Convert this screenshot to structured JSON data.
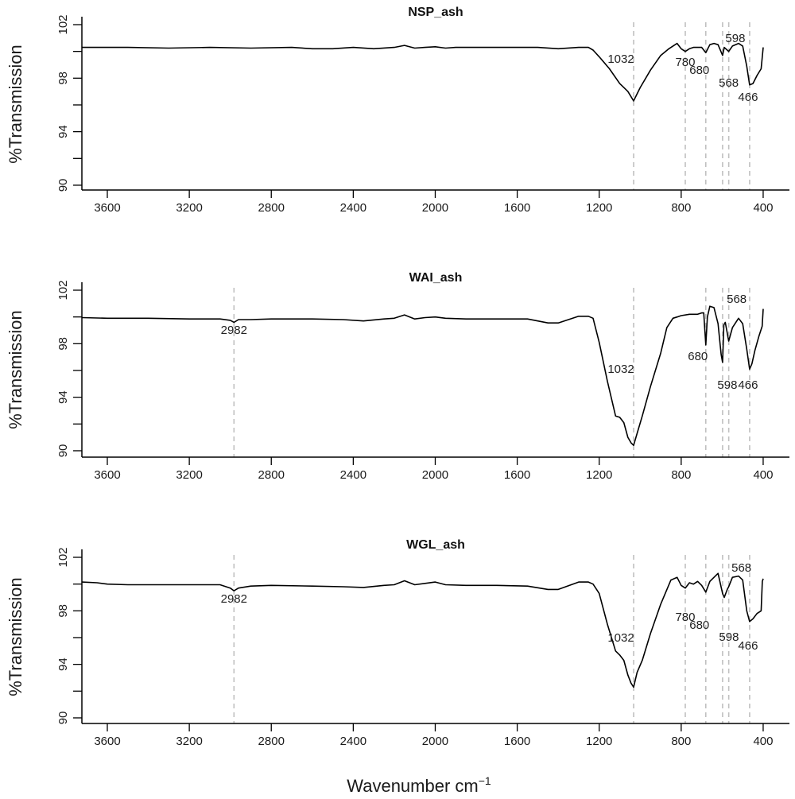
{
  "chart_data": [
    {
      "type": "line",
      "title": "NSP_ash",
      "xlabel": "Wavenumber cm",
      "xlabel_superscript": "−1",
      "ylabel": "%Transmission",
      "xlim": [
        3724,
        272
      ],
      "ylim": [
        90,
        102
      ],
      "xticks": [
        3600,
        3200,
        2800,
        2400,
        2000,
        1600,
        1200,
        800,
        400
      ],
      "yticks": [
        90,
        92,
        94,
        96,
        98,
        100,
        102
      ],
      "ytick_labels": [
        "90",
        "94",
        "98",
        "102"
      ],
      "grid": false,
      "peaks": [
        {
          "wn": 1032,
          "label": "1032"
        },
        {
          "wn": 780,
          "label": "780"
        },
        {
          "wn": 680,
          "label": "680"
        },
        {
          "wn": 598,
          "label": "598"
        },
        {
          "wn": 568,
          "label": "568"
        },
        {
          "wn": 466,
          "label": "466"
        }
      ],
      "series": [
        {
          "name": "NSP_ash",
          "color": "#000000",
          "x": [
            3724,
            3500,
            3300,
            3100,
            2900,
            2700,
            2600,
            2500,
            2400,
            2300,
            2200,
            2150,
            2100,
            2050,
            2000,
            1950,
            1900,
            1700,
            1500,
            1400,
            1300,
            1253,
            1230,
            1200,
            1150,
            1100,
            1080,
            1060,
            1032,
            1000,
            950,
            900,
            860,
            820,
            800,
            780,
            760,
            740,
            720,
            700,
            680,
            660,
            640,
            620,
            598,
            590,
            568,
            550,
            520,
            500,
            480,
            466,
            450,
            430,
            410,
            400
          ],
          "y": [
            100.3,
            100.3,
            100.25,
            100.3,
            100.25,
            100.3,
            100.2,
            100.2,
            100.3,
            100.2,
            100.3,
            100.45,
            100.25,
            100.3,
            100.35,
            100.25,
            100.3,
            100.3,
            100.3,
            100.2,
            100.3,
            100.3,
            100.1,
            99.6,
            98.7,
            97.6,
            97.3,
            97.0,
            96.3,
            97.3,
            98.6,
            99.7,
            100.2,
            100.6,
            100.2,
            100.0,
            100.2,
            100.3,
            100.3,
            100.3,
            99.9,
            100.5,
            100.6,
            100.5,
            99.7,
            100.3,
            100.0,
            100.4,
            100.6,
            100.4,
            98.9,
            97.5,
            97.6,
            98.2,
            98.7,
            100.3
          ]
        }
      ]
    },
    {
      "type": "line",
      "title": "WAI_ash",
      "xlabel": "Wavenumber cm",
      "ylabel": "%Transmission",
      "xlim": [
        3724,
        272
      ],
      "ylim": [
        90,
        102
      ],
      "xticks": [
        3600,
        3200,
        2800,
        2400,
        2000,
        1600,
        1200,
        800,
        400
      ],
      "yticks": [
        90,
        92,
        94,
        96,
        98,
        100,
        102
      ],
      "ytick_labels": [
        "90",
        "94",
        "98",
        "102"
      ],
      "grid": false,
      "peaks": [
        {
          "wn": 2982,
          "label": "2982"
        },
        {
          "wn": 1032,
          "label": "1032"
        },
        {
          "wn": 680,
          "label": "680"
        },
        {
          "wn": 598,
          "label": "598"
        },
        {
          "wn": 568,
          "label": "568"
        },
        {
          "wn": 466,
          "label": "466"
        }
      ],
      "series": [
        {
          "name": "WAI_ash",
          "color": "#000000",
          "x": [
            3724,
            3600,
            3400,
            3200,
            3050,
            3000,
            2982,
            2960,
            2900,
            2800,
            2600,
            2450,
            2350,
            2250,
            2200,
            2150,
            2100,
            2050,
            2000,
            1950,
            1850,
            1700,
            1550,
            1450,
            1400,
            1300,
            1253,
            1230,
            1200,
            1160,
            1120,
            1100,
            1080,
            1060,
            1045,
            1032,
            1015,
            990,
            950,
            900,
            870,
            840,
            820,
            800,
            760,
            720,
            700,
            690,
            680,
            672,
            660,
            640,
            620,
            605,
            598,
            592,
            585,
            568,
            550,
            520,
            500,
            480,
            466,
            455,
            440,
            420,
            405,
            400
          ],
          "y": [
            99.95,
            99.9,
            99.9,
            99.85,
            99.85,
            99.75,
            99.6,
            99.8,
            99.8,
            99.85,
            99.85,
            99.8,
            99.7,
            99.85,
            99.9,
            100.15,
            99.85,
            99.95,
            100.0,
            99.9,
            99.85,
            99.85,
            99.85,
            99.55,
            99.55,
            100.05,
            100.05,
            99.9,
            98.1,
            95.2,
            92.6,
            92.5,
            92.1,
            91.0,
            90.6,
            90.4,
            91.3,
            92.6,
            94.8,
            97.3,
            99.2,
            99.9,
            100.0,
            100.1,
            100.2,
            100.2,
            100.3,
            100.3,
            97.9,
            100.0,
            100.8,
            100.7,
            99.5,
            97.2,
            96.6,
            99.4,
            99.6,
            98.2,
            99.2,
            99.9,
            99.5,
            97.6,
            96.1,
            96.5,
            97.5,
            98.6,
            99.3,
            100.6
          ]
        }
      ]
    },
    {
      "type": "line",
      "title": "WGL_ash",
      "xlabel": "Wavenumber cm",
      "ylabel": "%Transmission",
      "xlim": [
        3724,
        272
      ],
      "ylim": [
        90,
        102
      ],
      "xticks": [
        3600,
        3200,
        2800,
        2400,
        2000,
        1600,
        1200,
        800,
        400
      ],
      "yticks": [
        90,
        92,
        94,
        96,
        98,
        100,
        102
      ],
      "ytick_labels": [
        "90",
        "94",
        "98",
        "102"
      ],
      "grid": false,
      "peaks": [
        {
          "wn": 2982,
          "label": "2982"
        },
        {
          "wn": 1032,
          "label": "1032"
        },
        {
          "wn": 780,
          "label": "780"
        },
        {
          "wn": 680,
          "label": "680"
        },
        {
          "wn": 598,
          "label": "598"
        },
        {
          "wn": 568,
          "label": "568"
        },
        {
          "wn": 466,
          "label": "466"
        }
      ],
      "series": [
        {
          "name": "WGL_ash",
          "color": "#000000",
          "x": [
            3724,
            3650,
            3600,
            3500,
            3400,
            3300,
            3200,
            3050,
            3000,
            2982,
            2960,
            2900,
            2800,
            2600,
            2450,
            2350,
            2250,
            2200,
            2150,
            2100,
            2050,
            2000,
            1950,
            1850,
            1700,
            1550,
            1450,
            1400,
            1300,
            1253,
            1230,
            1200,
            1160,
            1120,
            1100,
            1080,
            1060,
            1045,
            1032,
            1015,
            990,
            950,
            900,
            850,
            820,
            800,
            780,
            760,
            740,
            720,
            700,
            680,
            660,
            640,
            620,
            598,
            590,
            575,
            568,
            550,
            520,
            500,
            480,
            466,
            450,
            430,
            410,
            404,
            400
          ],
          "y": [
            100.15,
            100.1,
            100.0,
            99.95,
            99.95,
            99.95,
            99.95,
            99.95,
            99.7,
            99.5,
            99.7,
            99.85,
            99.9,
            99.85,
            99.8,
            99.75,
            99.9,
            99.95,
            100.25,
            99.95,
            100.05,
            100.15,
            99.95,
            99.9,
            99.9,
            99.85,
            99.6,
            99.6,
            100.15,
            100.15,
            100.0,
            99.3,
            97.0,
            95.0,
            94.7,
            94.3,
            93.2,
            92.6,
            92.3,
            93.4,
            94.3,
            96.3,
            98.5,
            100.3,
            100.5,
            99.9,
            99.7,
            100.1,
            100.0,
            100.2,
            99.9,
            99.4,
            100.2,
            100.5,
            100.8,
            99.3,
            99.0,
            99.6,
            99.8,
            100.5,
            100.6,
            100.3,
            98.0,
            97.2,
            97.4,
            97.8,
            98.0,
            100.2,
            100.4
          ]
        }
      ]
    }
  ]
}
